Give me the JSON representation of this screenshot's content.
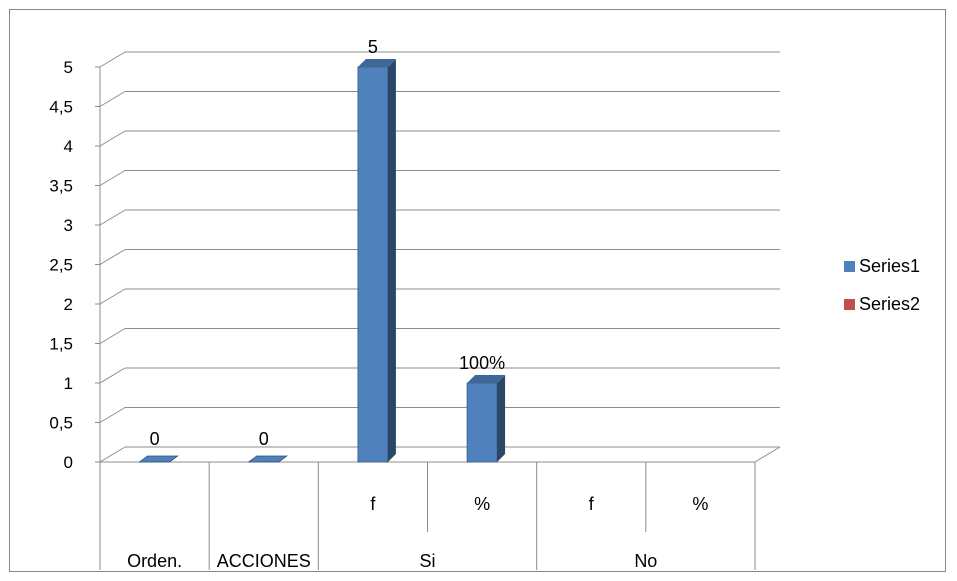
{
  "chart_data": {
    "type": "bar",
    "bar_style": "3d-column",
    "categories": [
      [
        "Orden.",
        ""
      ],
      [
        "ACCIONES",
        ""
      ],
      [
        "Si",
        "f"
      ],
      [
        "Si",
        "%"
      ],
      [
        "No",
        "f"
      ],
      [
        "No",
        "%"
      ]
    ],
    "category_groups": [
      {
        "label": "Orden.",
        "span": 1
      },
      {
        "label": "ACCIONES",
        "span": 1
      },
      {
        "label": "Si",
        "span": 2
      },
      {
        "label": "No",
        "span": 2
      }
    ],
    "sub_labels": [
      "",
      "",
      "f",
      "%",
      "f",
      "%"
    ],
    "series": [
      {
        "name": "Series1",
        "color": "#4f81bd",
        "values": [
          0,
          0,
          5,
          1,
          null,
          null
        ],
        "data_labels": [
          "0",
          "0",
          "5",
          "100%",
          "",
          ""
        ]
      },
      {
        "name": "Series2",
        "color": "#c0504d",
        "values": [
          null,
          null,
          null,
          null,
          null,
          null
        ],
        "data_labels": [
          "",
          "",
          "",
          "",
          "",
          ""
        ]
      }
    ],
    "ylim": [
      0,
      5
    ],
    "yticks": [
      "0",
      "0,5",
      "1",
      "1,5",
      "2",
      "2,5",
      "3",
      "3,5",
      "4",
      "4,5",
      "5"
    ],
    "ytick_values": [
      0,
      0.5,
      1,
      1.5,
      2,
      2.5,
      3,
      3.5,
      4,
      4.5,
      5
    ],
    "grid": true,
    "legend_position": "right",
    "title": "",
    "xlabel": "",
    "ylabel": ""
  }
}
